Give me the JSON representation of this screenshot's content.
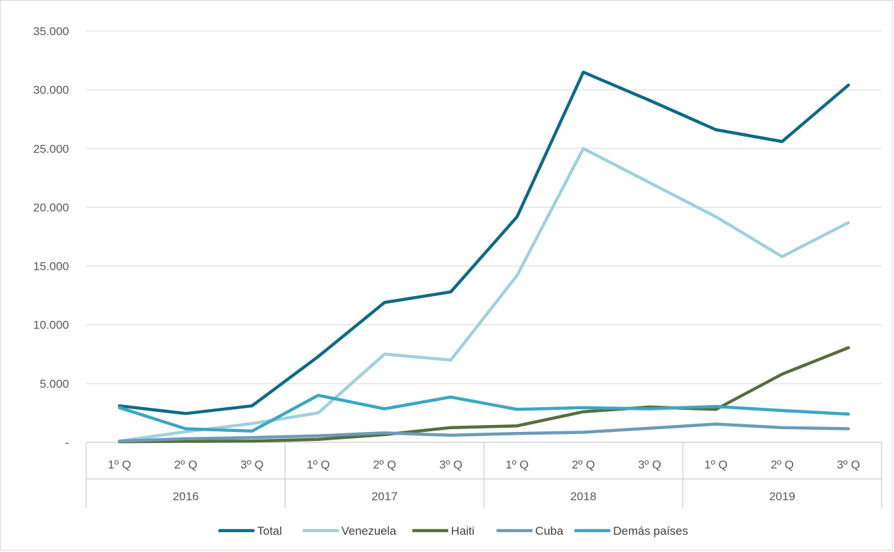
{
  "chart_data": {
    "type": "line",
    "title": "",
    "xlabel": "",
    "ylabel": "",
    "ylim": [
      0,
      35000
    ],
    "yticks": [
      {
        "value": 0,
        "label": "-"
      },
      {
        "value": 5000,
        "label": "5.000"
      },
      {
        "value": 10000,
        "label": "10.000"
      },
      {
        "value": 15000,
        "label": "15.000"
      },
      {
        "value": 20000,
        "label": "20.000"
      },
      {
        "value": 25000,
        "label": "25.000"
      },
      {
        "value": 30000,
        "label": "30.000"
      },
      {
        "value": 35000,
        "label": "35.000"
      }
    ],
    "categories": [
      "1º Q",
      "2º Q",
      "3º Q",
      "1º Q",
      "2º Q",
      "3º Q",
      "1º Q",
      "2º Q",
      "3º Q",
      "1º Q",
      "2º Q",
      "3º Q"
    ],
    "groups": [
      {
        "label": "2016",
        "count": 3
      },
      {
        "label": "2017",
        "count": 3
      },
      {
        "label": "2018",
        "count": 3
      },
      {
        "label": "2019",
        "count": 3
      }
    ],
    "grid": true,
    "legend_position": "bottom",
    "series": [
      {
        "name": "Total",
        "color": "#0e6a86",
        "values": [
          3100,
          2450,
          3100,
          7300,
          11900,
          12800,
          19200,
          31500,
          29100,
          26600,
          25600,
          30400
        ]
      },
      {
        "name": "Venezuela",
        "color": "#9fd1dc",
        "values": [
          100,
          900,
          1600,
          2500,
          7500,
          7000,
          14200,
          25000,
          22100,
          19200,
          15800,
          18700
        ]
      },
      {
        "name": "Haiti",
        "color": "#566e3d",
        "values": [
          50,
          80,
          100,
          250,
          650,
          1250,
          1400,
          2600,
          3000,
          2800,
          5800,
          8050
        ]
      },
      {
        "name": "Cuba",
        "color": "#6d9bb7",
        "values": [
          100,
          300,
          400,
          550,
          800,
          600,
          750,
          850,
          1200,
          1550,
          1250,
          1150
        ]
      },
      {
        "name": "Demás países",
        "color": "#3ba6c4",
        "values": [
          2950,
          1150,
          950,
          4000,
          2850,
          3850,
          2800,
          2950,
          2850,
          3050,
          2700,
          2400
        ]
      }
    ]
  }
}
